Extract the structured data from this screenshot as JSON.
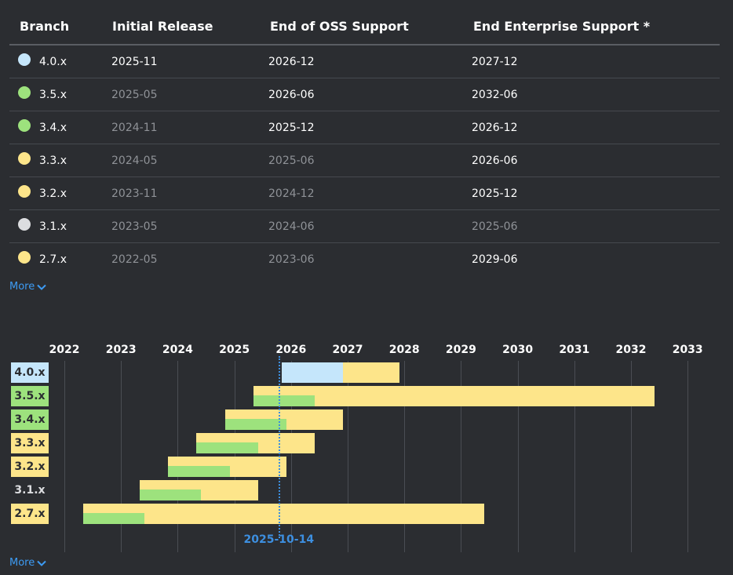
{
  "table": {
    "headers": {
      "branch": "Branch",
      "initial_release": "Initial Release",
      "end_oss": "End of OSS Support",
      "end_enterprise": "End Enterprise Support *"
    },
    "rows": [
      {
        "branch": "4.0.x",
        "status": "current",
        "initial": "2025-11",
        "initial_past": false,
        "oss": "2026-12",
        "oss_past": false,
        "ent": "2027-12",
        "ent_past": false
      },
      {
        "branch": "3.5.x",
        "status": "oss",
        "initial": "2025-05",
        "initial_past": true,
        "oss": "2026-06",
        "oss_past": false,
        "ent": "2032-06",
        "ent_past": false
      },
      {
        "branch": "3.4.x",
        "status": "oss",
        "initial": "2024-11",
        "initial_past": true,
        "oss": "2025-12",
        "oss_past": false,
        "ent": "2026-12",
        "ent_past": false
      },
      {
        "branch": "3.3.x",
        "status": "enterprise",
        "initial": "2024-05",
        "initial_past": true,
        "oss": "2025-06",
        "oss_past": true,
        "ent": "2026-06",
        "ent_past": false
      },
      {
        "branch": "3.2.x",
        "status": "enterprise",
        "initial": "2023-11",
        "initial_past": true,
        "oss": "2024-12",
        "oss_past": true,
        "ent": "2025-12",
        "ent_past": false
      },
      {
        "branch": "3.1.x",
        "status": "eol",
        "initial": "2023-05",
        "initial_past": true,
        "oss": "2024-06",
        "oss_past": true,
        "ent": "2025-06",
        "ent_past": true
      },
      {
        "branch": "2.7.x",
        "status": "enterprise",
        "initial": "2022-05",
        "initial_past": true,
        "oss": "2023-06",
        "oss_past": true,
        "ent": "2029-06",
        "ent_past": false
      }
    ],
    "more_label": "More"
  },
  "timeline": {
    "years": [
      "2022",
      "2023",
      "2024",
      "2025",
      "2026",
      "2027",
      "2028",
      "2029",
      "2030",
      "2031",
      "2032",
      "2033"
    ],
    "today_label": "2025-10-14",
    "more_label": "More"
  },
  "colors": {
    "current": "#c5e6fb",
    "oss": "#9de27d",
    "enterprise": "#fde58a",
    "eol": "#dcdde0",
    "link": "#3d9bf3",
    "today": "#3d8fe0"
  }
}
